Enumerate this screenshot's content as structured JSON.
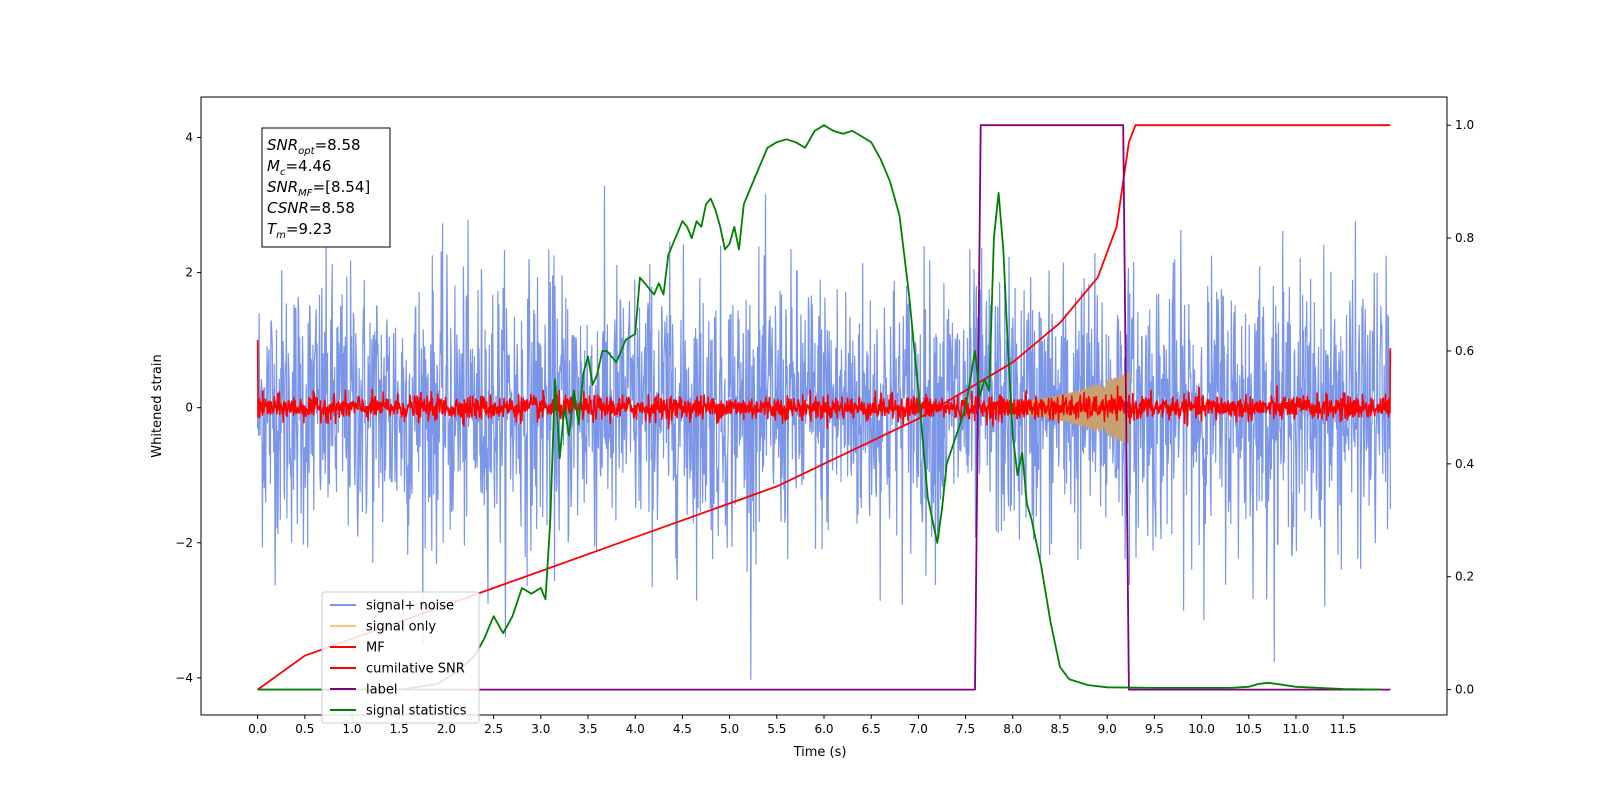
{
  "chart_data": {
    "type": "line",
    "xlabel": "Time (s)",
    "ylabel": "Whitened strain",
    "xlim": [
      -0.6,
      12.6
    ],
    "ylim": [
      -4.55,
      4.6
    ],
    "y2lim": [
      -0.045,
      1.05
    ],
    "x_ticks": [
      0.0,
      0.5,
      1.0,
      1.5,
      2.0,
      2.5,
      3.0,
      3.5,
      4.0,
      4.5,
      5.0,
      5.5,
      6.0,
      6.5,
      7.0,
      7.5,
      8.0,
      8.5,
      9.0,
      9.5,
      10.0,
      10.5,
      11.0,
      11.5
    ],
    "x_tick_labels": [
      "0.0",
      "0.5",
      "1.0",
      "1.5",
      "2.0",
      "2.5",
      "3.0",
      "3.5",
      "4.0",
      "4.5",
      "5.0",
      "5.5",
      "6.0",
      "6.5",
      "7.0",
      "7.5",
      "8.0",
      "8.5",
      "9.0",
      "9.5",
      "10.0",
      "10.5",
      "11.0",
      "11.5"
    ],
    "y_ticks": [
      -4,
      -2,
      0,
      2,
      4
    ],
    "y_tick_labels": [
      "−4",
      "−2",
      "0",
      "2",
      "4"
    ],
    "y2_ticks": [
      0.0,
      0.2,
      0.4,
      0.6,
      0.8,
      1.0
    ],
    "y2_tick_labels": [
      "0.0",
      "0.2",
      "0.4",
      "0.6",
      "0.8",
      "1.0"
    ],
    "legend_position": "lower-left",
    "legend": [
      {
        "name": "signal+ noise",
        "color": "#7b96e8"
      },
      {
        "name": "signal only",
        "color": "#ffc27a"
      },
      {
        "name": "MF",
        "color": "#ff0000"
      },
      {
        "name": "cumilative SNR",
        "color": "#ff0000"
      },
      {
        "name": "label",
        "color": "#800080"
      },
      {
        "name": "signal statistics",
        "color": "#008000"
      }
    ],
    "annotation": [
      {
        "base": "SNR",
        "sub": "opt",
        "value": "=8.58"
      },
      {
        "base": "M",
        "sub": "c",
        "value": "=4.46"
      },
      {
        "base": "SNR",
        "sub": "MF",
        "value": "=[8.54]"
      },
      {
        "base": "CSNR",
        "sub": "",
        "value": "=8.58"
      },
      {
        "base": "T",
        "sub": "m",
        "value": "=9.23"
      }
    ],
    "series": [
      {
        "name": "signal+ noise",
        "axis": "left",
        "color": "#7b96e8",
        "style": "noise",
        "x_range": [
          0.0,
          12.0
        ],
        "mean": 0.0,
        "std": 1.0,
        "ylim_clip": [
          -4.1,
          4.2
        ]
      },
      {
        "name": "signal only",
        "axis": "left",
        "color": "#c9a070",
        "style": "chirp",
        "x_range": [
          7.6,
          9.23
        ],
        "amplitude_start": 0.06,
        "amplitude_end": 0.55
      },
      {
        "name": "MF",
        "axis": "left",
        "color": "#ff0000",
        "style": "noise",
        "x_range": [
          0.0,
          12.0
        ],
        "mean": 0.0,
        "std": 0.09,
        "edge_values": [
          1.0,
          0.88
        ]
      },
      {
        "name": "cumilative SNR",
        "axis": "right",
        "color": "#ff0000",
        "x": [
          0.0,
          0.5,
          1.0,
          1.5,
          2.0,
          2.5,
          3.0,
          3.5,
          4.0,
          4.5,
          5.0,
          5.5,
          6.0,
          6.5,
          7.0,
          7.5,
          8.0,
          8.5,
          8.9,
          9.1,
          9.23,
          9.3,
          12.0
        ],
        "y": [
          0.0,
          0.06,
          0.09,
          0.12,
          0.15,
          0.18,
          0.21,
          0.24,
          0.27,
          0.3,
          0.33,
          0.36,
          0.4,
          0.44,
          0.48,
          0.53,
          0.58,
          0.65,
          0.73,
          0.82,
          0.97,
          1.0,
          1.0
        ]
      },
      {
        "name": "label",
        "axis": "right",
        "color": "#800080",
        "x": [
          0.0,
          7.6,
          7.66,
          9.17,
          9.23,
          12.0
        ],
        "y": [
          0.0,
          0.0,
          1.0,
          1.0,
          0.0,
          0.0
        ]
      },
      {
        "name": "signal statistics",
        "axis": "right",
        "color": "#008000",
        "x": [
          0.0,
          1.0,
          1.5,
          1.9,
          2.1,
          2.3,
          2.4,
          2.5,
          2.6,
          2.7,
          2.8,
          2.9,
          3.0,
          3.05,
          3.1,
          3.15,
          3.2,
          3.25,
          3.3,
          3.35,
          3.4,
          3.45,
          3.5,
          3.55,
          3.6,
          3.65,
          3.7,
          3.8,
          3.9,
          4.0,
          4.05,
          4.1,
          4.15,
          4.2,
          4.25,
          4.3,
          4.35,
          4.4,
          4.45,
          4.5,
          4.55,
          4.6,
          4.65,
          4.7,
          4.75,
          4.8,
          4.85,
          4.9,
          4.95,
          5.0,
          5.05,
          5.1,
          5.15,
          5.2,
          5.3,
          5.4,
          5.5,
          5.6,
          5.7,
          5.8,
          5.9,
          6.0,
          6.1,
          6.2,
          6.3,
          6.4,
          6.5,
          6.6,
          6.7,
          6.8,
          6.9,
          7.0,
          7.1,
          7.2,
          7.25,
          7.3,
          7.4,
          7.5,
          7.6,
          7.65,
          7.7,
          7.75,
          7.8,
          7.85,
          7.9,
          7.95,
          8.0,
          8.05,
          8.1,
          8.15,
          8.2,
          8.3,
          8.4,
          8.5,
          8.6,
          8.8,
          9.0,
          9.5,
          10.0,
          10.3,
          10.5,
          10.6,
          10.7,
          10.8,
          11.0,
          11.5,
          11.9
        ],
        "y": [
          0.0,
          0.0,
          0.0,
          0.01,
          0.03,
          0.06,
          0.09,
          0.13,
          0.1,
          0.13,
          0.18,
          0.17,
          0.18,
          0.16,
          0.3,
          0.55,
          0.41,
          0.5,
          0.45,
          0.53,
          0.47,
          0.56,
          0.59,
          0.54,
          0.56,
          0.6,
          0.6,
          0.58,
          0.62,
          0.63,
          0.73,
          0.72,
          0.71,
          0.7,
          0.72,
          0.7,
          0.77,
          0.79,
          0.81,
          0.83,
          0.82,
          0.8,
          0.83,
          0.82,
          0.86,
          0.87,
          0.85,
          0.82,
          0.78,
          0.79,
          0.82,
          0.78,
          0.86,
          0.88,
          0.92,
          0.96,
          0.97,
          0.975,
          0.97,
          0.96,
          0.99,
          1.0,
          0.99,
          0.985,
          0.99,
          0.98,
          0.97,
          0.94,
          0.9,
          0.84,
          0.7,
          0.53,
          0.34,
          0.26,
          0.32,
          0.4,
          0.45,
          0.5,
          0.6,
          0.52,
          0.55,
          0.53,
          0.8,
          0.88,
          0.78,
          0.6,
          0.45,
          0.38,
          0.42,
          0.33,
          0.3,
          0.22,
          0.12,
          0.04,
          0.018,
          0.008,
          0.004,
          0.003,
          0.003,
          0.003,
          0.005,
          0.01,
          0.012,
          0.01,
          0.005,
          0.001,
          0.0
        ]
      }
    ]
  }
}
